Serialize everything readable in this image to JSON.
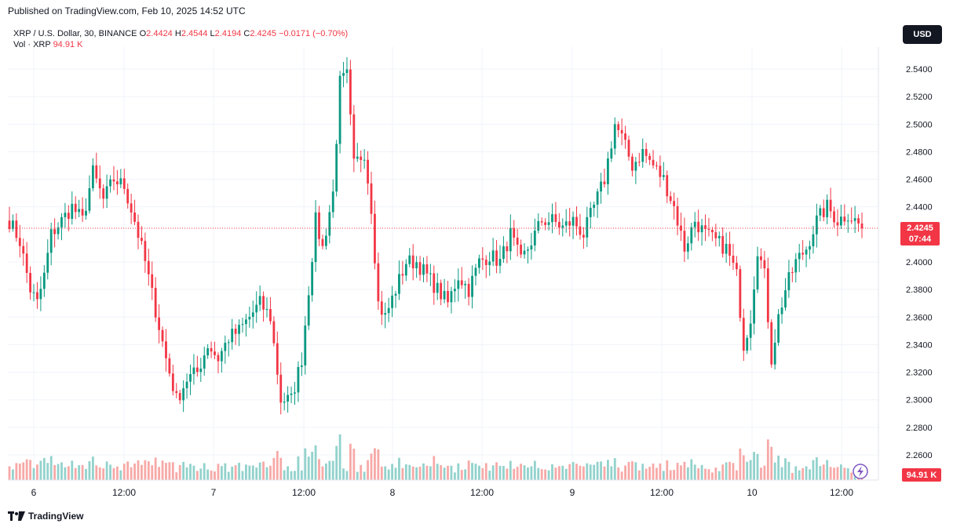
{
  "published": "Published on TradingView.com, Feb 10, 2025 14:52 UTC",
  "legend": {
    "symbol": "XRP / U.S. Dollar, 30, BINANCE",
    "o_label": "O",
    "o": "2.4424",
    "h_label": "H",
    "h": "2.4544",
    "l_label": "L",
    "l": "2.4194",
    "c_label": "C",
    "c": "2.4245",
    "change": "−0.0171 (−0.70%)",
    "vol_label": "Vol · XRP",
    "vol": "94.91 K"
  },
  "currency_button": "USD",
  "footer_brand": "TradingView",
  "price_tag": {
    "value": "2.4245",
    "countdown": "07:44"
  },
  "volume_tag": "94.91 K",
  "colors": {
    "up": "#089981",
    "down": "#f23645",
    "up_vol": "#92d2cc",
    "down_vol": "#f7a9a7",
    "grid": "#f0f3fa",
    "axis_text": "#131722"
  },
  "icons": {
    "brand": "tradingview-logo-icon",
    "lightning": "lightning-icon"
  },
  "chart_data": {
    "type": "candlestick",
    "y_ticks": [
      "2.5400",
      "2.5200",
      "2.5000",
      "2.4800",
      "2.4600",
      "2.4400",
      "2.4000",
      "2.3800",
      "2.3600",
      "2.3400",
      "2.3200",
      "2.3000",
      "2.2800",
      "2.2600"
    ],
    "x_ticks": [
      "6",
      "12:00",
      "7",
      "12:00",
      "8",
      "12:00",
      "9",
      "12:00",
      "10",
      "12:00"
    ],
    "ylim": [
      2.25,
      2.56
    ],
    "last_close": 2.4245,
    "grid": true,
    "anchors": [
      [
        0,
        2.43
      ],
      [
        3,
        2.415
      ],
      [
        6,
        2.38
      ],
      [
        8,
        2.37
      ],
      [
        10,
        2.39
      ],
      [
        12,
        2.42
      ],
      [
        15,
        2.43
      ],
      [
        18,
        2.44
      ],
      [
        21,
        2.43
      ],
      [
        24,
        2.465
      ],
      [
        27,
        2.445
      ],
      [
        30,
        2.46
      ],
      [
        33,
        2.455
      ],
      [
        36,
        2.43
      ],
      [
        39,
        2.4
      ],
      [
        42,
        2.365
      ],
      [
        45,
        2.33
      ],
      [
        48,
        2.3
      ],
      [
        51,
        2.315
      ],
      [
        54,
        2.32
      ],
      [
        57,
        2.34
      ],
      [
        60,
        2.33
      ],
      [
        63,
        2.345
      ],
      [
        66,
        2.35
      ],
      [
        69,
        2.36
      ],
      [
        72,
        2.37
      ],
      [
        75,
        2.36
      ],
      [
        78,
        2.3
      ],
      [
        81,
        2.3
      ],
      [
        84,
        2.33
      ],
      [
        86,
        2.38
      ],
      [
        88,
        2.43
      ],
      [
        90,
        2.41
      ],
      [
        93,
        2.45
      ],
      [
        95,
        2.53
      ],
      [
        97,
        2.535
      ],
      [
        99,
        2.47
      ],
      [
        102,
        2.48
      ],
      [
        104,
        2.44
      ],
      [
        106,
        2.37
      ],
      [
        108,
        2.36
      ],
      [
        111,
        2.38
      ],
      [
        114,
        2.4
      ],
      [
        117,
        2.4
      ],
      [
        120,
        2.39
      ],
      [
        123,
        2.38
      ],
      [
        126,
        2.37
      ],
      [
        129,
        2.39
      ],
      [
        132,
        2.38
      ],
      [
        135,
        2.4
      ],
      [
        138,
        2.405
      ],
      [
        141,
        2.4
      ],
      [
        144,
        2.42
      ],
      [
        147,
        2.4
      ],
      [
        150,
        2.415
      ],
      [
        153,
        2.43
      ],
      [
        156,
        2.43
      ],
      [
        159,
        2.425
      ],
      [
        162,
        2.43
      ],
      [
        165,
        2.42
      ],
      [
        168,
        2.44
      ],
      [
        171,
        2.46
      ],
      [
        174,
        2.5
      ],
      [
        176,
        2.49
      ],
      [
        179,
        2.47
      ],
      [
        182,
        2.48
      ],
      [
        185,
        2.47
      ],
      [
        188,
        2.46
      ],
      [
        191,
        2.44
      ],
      [
        194,
        2.41
      ],
      [
        197,
        2.43
      ],
      [
        200,
        2.42
      ],
      [
        203,
        2.415
      ],
      [
        206,
        2.41
      ],
      [
        209,
        2.39
      ],
      [
        211,
        2.34
      ],
      [
        213,
        2.36
      ],
      [
        215,
        2.41
      ],
      [
        217,
        2.39
      ],
      [
        219,
        2.33
      ],
      [
        221,
        2.36
      ],
      [
        223,
        2.38
      ],
      [
        226,
        2.4
      ],
      [
        229,
        2.41
      ],
      [
        232,
        2.43
      ],
      [
        235,
        2.44
      ],
      [
        238,
        2.43
      ],
      [
        241,
        2.435
      ],
      [
        243,
        2.43
      ],
      [
        245,
        2.4245
      ]
    ]
  }
}
